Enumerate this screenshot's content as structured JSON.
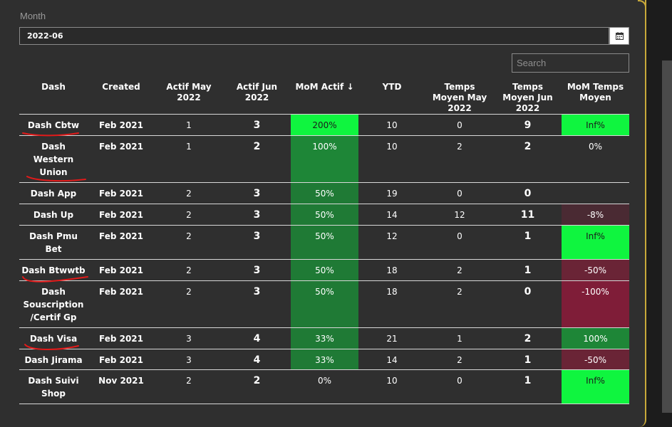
{
  "month": {
    "label": "Month",
    "value": "2022-06",
    "icon": "calendar-icon"
  },
  "search": {
    "placeholder": "Search"
  },
  "columns": [
    "Dash",
    "Created",
    "Actif May 2022",
    "Actif Jun 2022",
    "MoM Actif",
    "YTD",
    "Temps Moyen May 2022",
    "Temps Moyen Jun 2022",
    "MoM Temps Moyen"
  ],
  "sort_indicator": "↓",
  "rows": [
    {
      "dash": "Dash Cbtw",
      "created": "Feb 2021",
      "actif_may": "1",
      "actif_jun": "3",
      "mom_actif": "200%",
      "ytd": "10",
      "temps_may": "0",
      "temps_jun": "9",
      "mom_temps": "Inf%"
    },
    {
      "dash": "Dash Western Union",
      "created": "Feb 2021",
      "actif_may": "1",
      "actif_jun": "2",
      "mom_actif": "100%",
      "ytd": "10",
      "temps_may": "2",
      "temps_jun": "2",
      "mom_temps": "0%"
    },
    {
      "dash": "Dash App",
      "created": "Feb 2021",
      "actif_may": "2",
      "actif_jun": "3",
      "mom_actif": "50%",
      "ytd": "19",
      "temps_may": "0",
      "temps_jun": "0",
      "mom_temps": ""
    },
    {
      "dash": "Dash Up",
      "created": "Feb 2021",
      "actif_may": "2",
      "actif_jun": "3",
      "mom_actif": "50%",
      "ytd": "14",
      "temps_may": "12",
      "temps_jun": "11",
      "mom_temps": "-8%"
    },
    {
      "dash": "Dash Pmu Bet",
      "created": "Feb 2021",
      "actif_may": "2",
      "actif_jun": "3",
      "mom_actif": "50%",
      "ytd": "12",
      "temps_may": "0",
      "temps_jun": "1",
      "mom_temps": "Inf%"
    },
    {
      "dash": "Dash Btwwtb",
      "created": "Feb 2021",
      "actif_may": "2",
      "actif_jun": "3",
      "mom_actif": "50%",
      "ytd": "18",
      "temps_may": "2",
      "temps_jun": "1",
      "mom_temps": "-50%"
    },
    {
      "dash": "Dash Souscription /Certif Gp",
      "created": "Feb 2021",
      "actif_may": "2",
      "actif_jun": "3",
      "mom_actif": "50%",
      "ytd": "18",
      "temps_may": "2",
      "temps_jun": "0",
      "mom_temps": "-100%"
    },
    {
      "dash": "Dash Visa",
      "created": "Feb 2021",
      "actif_may": "3",
      "actif_jun": "4",
      "mom_actif": "33%",
      "ytd": "21",
      "temps_may": "1",
      "temps_jun": "2",
      "mom_temps": "100%"
    },
    {
      "dash": "Dash Jirama",
      "created": "Feb 2021",
      "actif_may": "3",
      "actif_jun": "4",
      "mom_actif": "33%",
      "ytd": "14",
      "temps_may": "2",
      "temps_jun": "1",
      "mom_temps": "-50%"
    },
    {
      "dash": "Dash Suivi Shop",
      "created": "Nov 2021",
      "actif_may": "2",
      "actif_jun": "2",
      "mom_actif": "0%",
      "ytd": "10",
      "temps_may": "0",
      "temps_jun": "1",
      "mom_temps": "Inf%"
    }
  ],
  "colors": {
    "panel": "#2f2f2f",
    "border_accent": "#c8a93a",
    "green_strong": "#0ff53f",
    "green_dark": "#1e8637",
    "red_dark": "#7f1d38",
    "annotation": "#e21a1a"
  }
}
